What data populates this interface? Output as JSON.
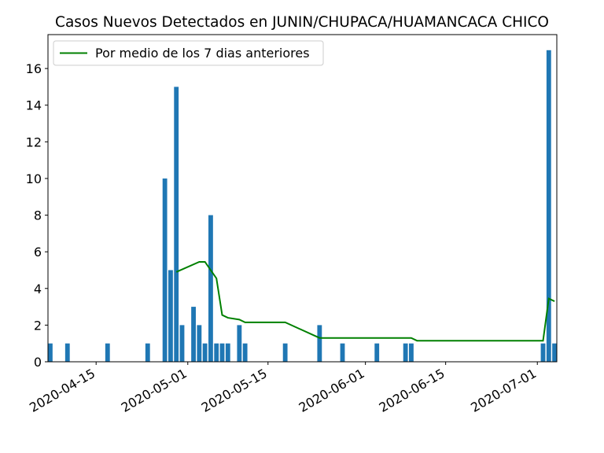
{
  "chart_data": {
    "type": "bar",
    "title": "Casos Nuevos Detectados en JUNIN/CHUPACA/HUAMANCACA CHICO",
    "xlabel": "",
    "ylabel": "",
    "x_range": [
      "2020-04-07",
      "2020-07-04"
    ],
    "ylim": [
      0,
      17.85
    ],
    "grid": false,
    "legend_position": "top-left",
    "colors": {
      "bar": "#1f77b4",
      "line": "#008000"
    },
    "x_ticks": [
      "2020-04-15",
      "2020-05-01",
      "2020-05-15",
      "2020-06-01",
      "2020-06-15",
      "2020-07-01"
    ],
    "y_ticks": [
      0,
      2,
      4,
      6,
      8,
      10,
      12,
      14,
      16
    ],
    "series": [
      {
        "kind": "bar",
        "points": [
          {
            "x": "2020-04-07",
            "y": 1
          },
          {
            "x": "2020-04-10",
            "y": 1
          },
          {
            "x": "2020-04-17",
            "y": 1
          },
          {
            "x": "2020-04-24",
            "y": 1
          },
          {
            "x": "2020-04-27",
            "y": 10
          },
          {
            "x": "2020-04-28",
            "y": 5
          },
          {
            "x": "2020-04-29",
            "y": 15
          },
          {
            "x": "2020-04-30",
            "y": 2
          },
          {
            "x": "2020-05-02",
            "y": 3
          },
          {
            "x": "2020-05-03",
            "y": 2
          },
          {
            "x": "2020-05-04",
            "y": 1
          },
          {
            "x": "2020-05-05",
            "y": 8
          },
          {
            "x": "2020-05-06",
            "y": 1
          },
          {
            "x": "2020-05-07",
            "y": 1
          },
          {
            "x": "2020-05-08",
            "y": 1
          },
          {
            "x": "2020-05-10",
            "y": 2
          },
          {
            "x": "2020-05-11",
            "y": 1
          },
          {
            "x": "2020-05-18",
            "y": 1
          },
          {
            "x": "2020-05-24",
            "y": 2
          },
          {
            "x": "2020-05-28",
            "y": 1
          },
          {
            "x": "2020-06-03",
            "y": 1
          },
          {
            "x": "2020-06-08",
            "y": 1
          },
          {
            "x": "2020-06-09",
            "y": 1
          },
          {
            "x": "2020-07-02",
            "y": 1
          },
          {
            "x": "2020-07-03",
            "y": 17
          },
          {
            "x": "2020-07-04",
            "y": 1
          }
        ]
      },
      {
        "kind": "line",
        "name": "Por medio de los 7 dias anteriores",
        "points": [
          {
            "x": "2020-04-29",
            "y": 4.9
          },
          {
            "x": "2020-05-03",
            "y": 5.45
          },
          {
            "x": "2020-05-04",
            "y": 5.45
          },
          {
            "x": "2020-05-06",
            "y": 4.55
          },
          {
            "x": "2020-05-07",
            "y": 2.55
          },
          {
            "x": "2020-05-08",
            "y": 2.4
          },
          {
            "x": "2020-05-10",
            "y": 2.3
          },
          {
            "x": "2020-05-11",
            "y": 2.15
          },
          {
            "x": "2020-05-18",
            "y": 2.15
          },
          {
            "x": "2020-05-24",
            "y": 1.3
          },
          {
            "x": "2020-06-09",
            "y": 1.3
          },
          {
            "x": "2020-06-10",
            "y": 1.15
          },
          {
            "x": "2020-07-02",
            "y": 1.15
          },
          {
            "x": "2020-07-03",
            "y": 3.45
          },
          {
            "x": "2020-07-04",
            "y": 3.3
          }
        ]
      }
    ]
  }
}
